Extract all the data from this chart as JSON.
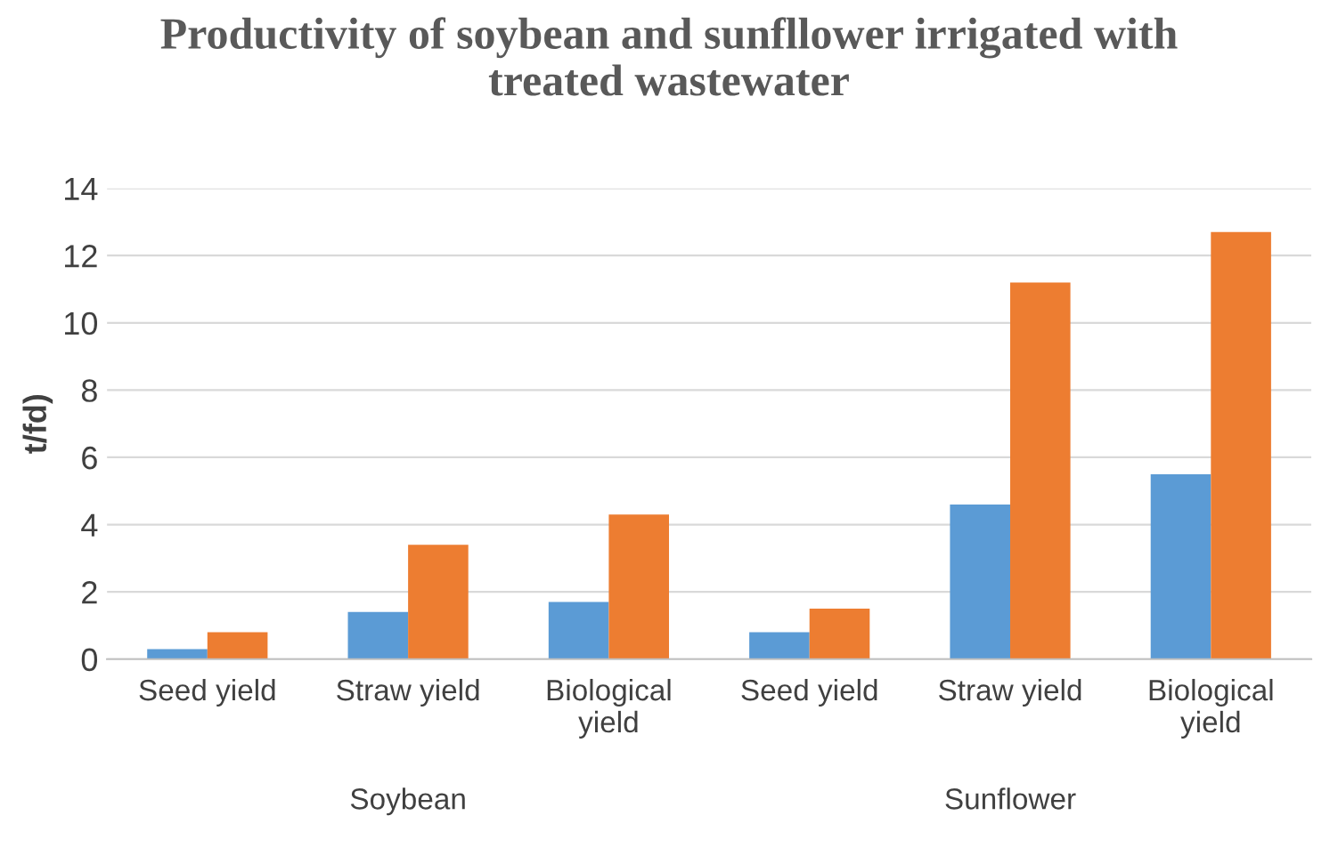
{
  "chart_data": {
    "type": "bar",
    "title": "Productivity of soybean and sunfllower irrigated with\ntreated wastewater",
    "ylabel": "t/fd)",
    "categories": [
      "Seed yield",
      "Straw yield",
      "Biological\nyield",
      "Seed yield",
      "Straw yield",
      "Biological\nyield"
    ],
    "series": [
      {
        "color": "#5b9bd5",
        "values": [
          0.3,
          1.4,
          1.7,
          0.8,
          4.6,
          5.5
        ]
      },
      {
        "color": "#ed7d31",
        "values": [
          0.8,
          3.4,
          4.3,
          1.5,
          11.2,
          12.7
        ]
      }
    ],
    "annotations": [
      "Soybean",
      "Sunflower"
    ],
    "ylim": [
      0,
      14
    ],
    "yticks": [
      0,
      2,
      4,
      6,
      8,
      10,
      12,
      14
    ],
    "grid": "y"
  }
}
